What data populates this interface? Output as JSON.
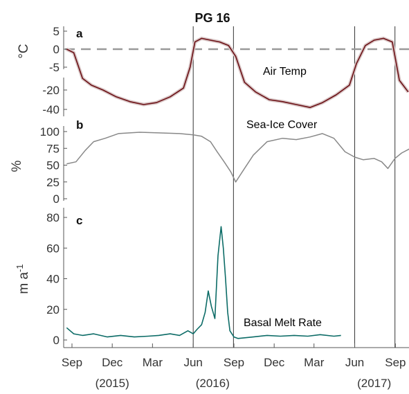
{
  "chart_data": {
    "type": "line",
    "title": "PG 16",
    "x_axis": {
      "tick_labels": [
        "Sep",
        "Dec",
        "Mar",
        "Jun",
        "Sep",
        "Dec",
        "Mar",
        "Jun",
        "Sep"
      ],
      "year_labels": [
        "(2015)",
        "(2016)",
        "(2017)"
      ]
    },
    "vertical_markers": [
      "2016-06-01",
      "2016-08-31",
      "2017-06-01",
      "2017-08-31"
    ],
    "panels": [
      {
        "label": "a",
        "ylabel": "°C",
        "series_name": "Air Temp",
        "color": "#6b0f14",
        "zero_line": true,
        "yticks_top": [
          "5",
          "0",
          "-5"
        ],
        "yticks_bottom": [
          "-20",
          "-40"
        ],
        "x": [
          "2015-08-20",
          "2015-09-05",
          "2015-09-25",
          "2015-10-15",
          "2015-11-10",
          "2015-12-10",
          "2016-01-10",
          "2016-02-10",
          "2016-03-10",
          "2016-04-10",
          "2016-05-10",
          "2016-05-25",
          "2016-06-05",
          "2016-06-20",
          "2016-07-10",
          "2016-07-31",
          "2016-08-20",
          "2016-09-05",
          "2016-09-25",
          "2016-10-20",
          "2016-11-20",
          "2016-12-20",
          "2017-01-20",
          "2017-02-20",
          "2017-03-20",
          "2017-04-20",
          "2017-05-20",
          "2017-06-05",
          "2017-06-25",
          "2017-07-15",
          "2017-08-05",
          "2017-08-25",
          "2017-09-10",
          "2017-09-30"
        ],
        "values": [
          0,
          -1,
          -8,
          -15,
          -20,
          -27,
          -32,
          -35,
          -33,
          -27,
          -18,
          -5,
          2,
          3,
          2.5,
          2,
          1,
          -2,
          -12,
          -22,
          -30,
          -32,
          -35,
          -38,
          -33,
          -25,
          -15,
          -4,
          1,
          2.5,
          3,
          2,
          -10,
          -22
        ]
      },
      {
        "label": "b",
        "ylabel": "%",
        "series_name": "Sea-Ice Cover",
        "color": "#888888",
        "yticks": [
          0,
          25,
          50,
          75,
          100
        ],
        "ylim": [
          0,
          100
        ],
        "x": [
          "2015-08-20",
          "2015-09-10",
          "2015-10-01",
          "2015-10-20",
          "2015-11-15",
          "2015-12-15",
          "2016-02-01",
          "2016-03-15",
          "2016-05-01",
          "2016-06-01",
          "2016-06-20",
          "2016-07-10",
          "2016-07-25",
          "2016-08-10",
          "2016-08-25",
          "2016-09-05",
          "2016-09-25",
          "2016-10-15",
          "2016-11-15",
          "2016-12-20",
          "2017-01-20",
          "2017-02-20",
          "2017-03-20",
          "2017-04-15",
          "2017-05-10",
          "2017-06-01",
          "2017-06-20",
          "2017-07-15",
          "2017-08-01",
          "2017-08-15",
          "2017-08-31",
          "2017-09-15",
          "2017-10-05"
        ],
        "values": [
          52,
          55,
          72,
          85,
          90,
          97,
          99,
          98,
          97,
          95,
          93,
          85,
          70,
          55,
          40,
          25,
          45,
          65,
          85,
          90,
          88,
          92,
          97,
          90,
          70,
          62,
          58,
          60,
          55,
          45,
          60,
          68,
          75
        ]
      },
      {
        "label": "c",
        "ylabel": "m a-1",
        "series_name": "Basal Melt Rate",
        "color": "#0b6b66",
        "yticks": [
          0,
          20,
          40,
          60,
          80
        ],
        "ylim": [
          -4,
          82
        ],
        "x": [
          "2015-08-20",
          "2015-09-05",
          "2015-09-25",
          "2015-10-20",
          "2015-11-20",
          "2015-12-20",
          "2016-01-20",
          "2016-02-20",
          "2016-03-15",
          "2016-04-10",
          "2016-05-01",
          "2016-05-20",
          "2016-06-01",
          "2016-06-10",
          "2016-06-20",
          "2016-06-28",
          "2016-07-05",
          "2016-07-12",
          "2016-07-20",
          "2016-07-27",
          "2016-08-03",
          "2016-08-08",
          "2016-08-13",
          "2016-08-18",
          "2016-08-23",
          "2016-09-01",
          "2016-09-10",
          "2016-10-15",
          "2016-11-15",
          "2016-12-15",
          "2017-01-15",
          "2017-02-15",
          "2017-03-15",
          "2017-04-15",
          "2017-05-01"
        ],
        "values": [
          8,
          4,
          3,
          4,
          2,
          3,
          2,
          2.5,
          3,
          4,
          3,
          6,
          4,
          7,
          10,
          18,
          32,
          22,
          14,
          55,
          74,
          60,
          40,
          18,
          6,
          2,
          1,
          2,
          3,
          2.5,
          3,
          2.5,
          3.5,
          2.5,
          3
        ]
      }
    ]
  }
}
